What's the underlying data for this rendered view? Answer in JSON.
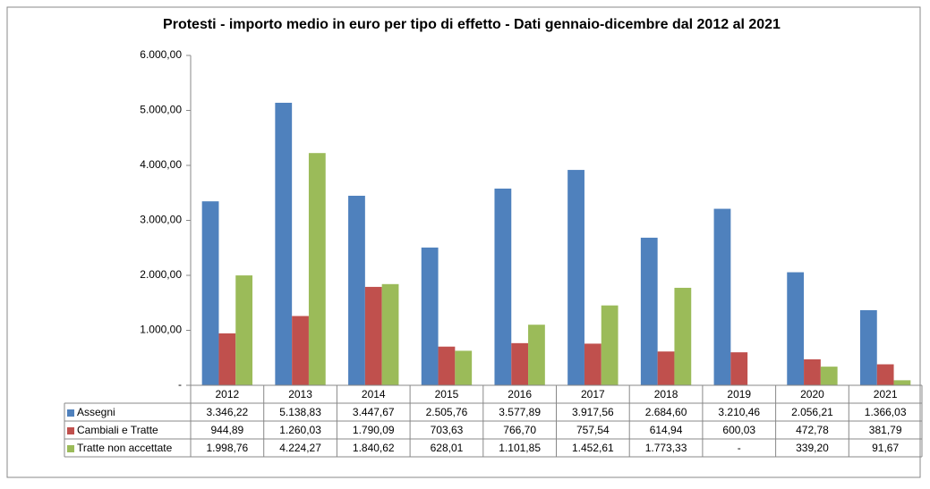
{
  "chart_data": {
    "type": "bar",
    "title": "Protesti - importo medio in euro per tipo di effetto - Dati gennaio-dicembre dal 2012 al 2021",
    "categories": [
      "2012",
      "2013",
      "2014",
      "2015",
      "2016",
      "2017",
      "2018",
      "2019",
      "2020",
      "2021"
    ],
    "series": [
      {
        "name": "Assegni",
        "color": "#4f81bd",
        "values": [
          3346.22,
          5138.83,
          3447.67,
          2505.76,
          3577.89,
          3917.56,
          2684.6,
          3210.46,
          2056.21,
          1366.03
        ],
        "value_labels": [
          "3.346,22",
          "5.138,83",
          "3.447,67",
          "2.505,76",
          "3.577,89",
          "3.917,56",
          "2.684,60",
          "3.210,46",
          "2.056,21",
          "1.366,03"
        ]
      },
      {
        "name": "Cambiali e Tratte",
        "color": "#c0504d",
        "values": [
          944.89,
          1260.03,
          1790.09,
          703.63,
          766.7,
          757.54,
          614.94,
          600.03,
          472.78,
          381.79
        ],
        "value_labels": [
          "944,89",
          "1.260,03",
          "1.790,09",
          "703,63",
          "766,70",
          "757,54",
          "614,94",
          "600,03",
          "472,78",
          "381,79"
        ]
      },
      {
        "name": "Tratte non accettate",
        "color": "#9bbb59",
        "values": [
          1998.76,
          4224.27,
          1840.62,
          628.01,
          1101.85,
          1452.61,
          1773.33,
          null,
          339.2,
          91.67
        ],
        "value_labels": [
          "1.998,76",
          "4.224,27",
          "1.840,62",
          "628,01",
          "1.101,85",
          "1.452,61",
          "1.773,33",
          "-",
          "339,20",
          "91,67"
        ]
      }
    ],
    "ylim": [
      0,
      6000
    ],
    "yticks": [
      {
        "value": 0,
        "label": "-"
      },
      {
        "value": 1000,
        "label": "1.000,00"
      },
      {
        "value": 2000,
        "label": "2.000,00"
      },
      {
        "value": 3000,
        "label": "3.000,00"
      },
      {
        "value": 4000,
        "label": "4.000,00"
      },
      {
        "value": 5000,
        "label": "5.000,00"
      },
      {
        "value": 6000,
        "label": "6.000,00"
      }
    ]
  }
}
